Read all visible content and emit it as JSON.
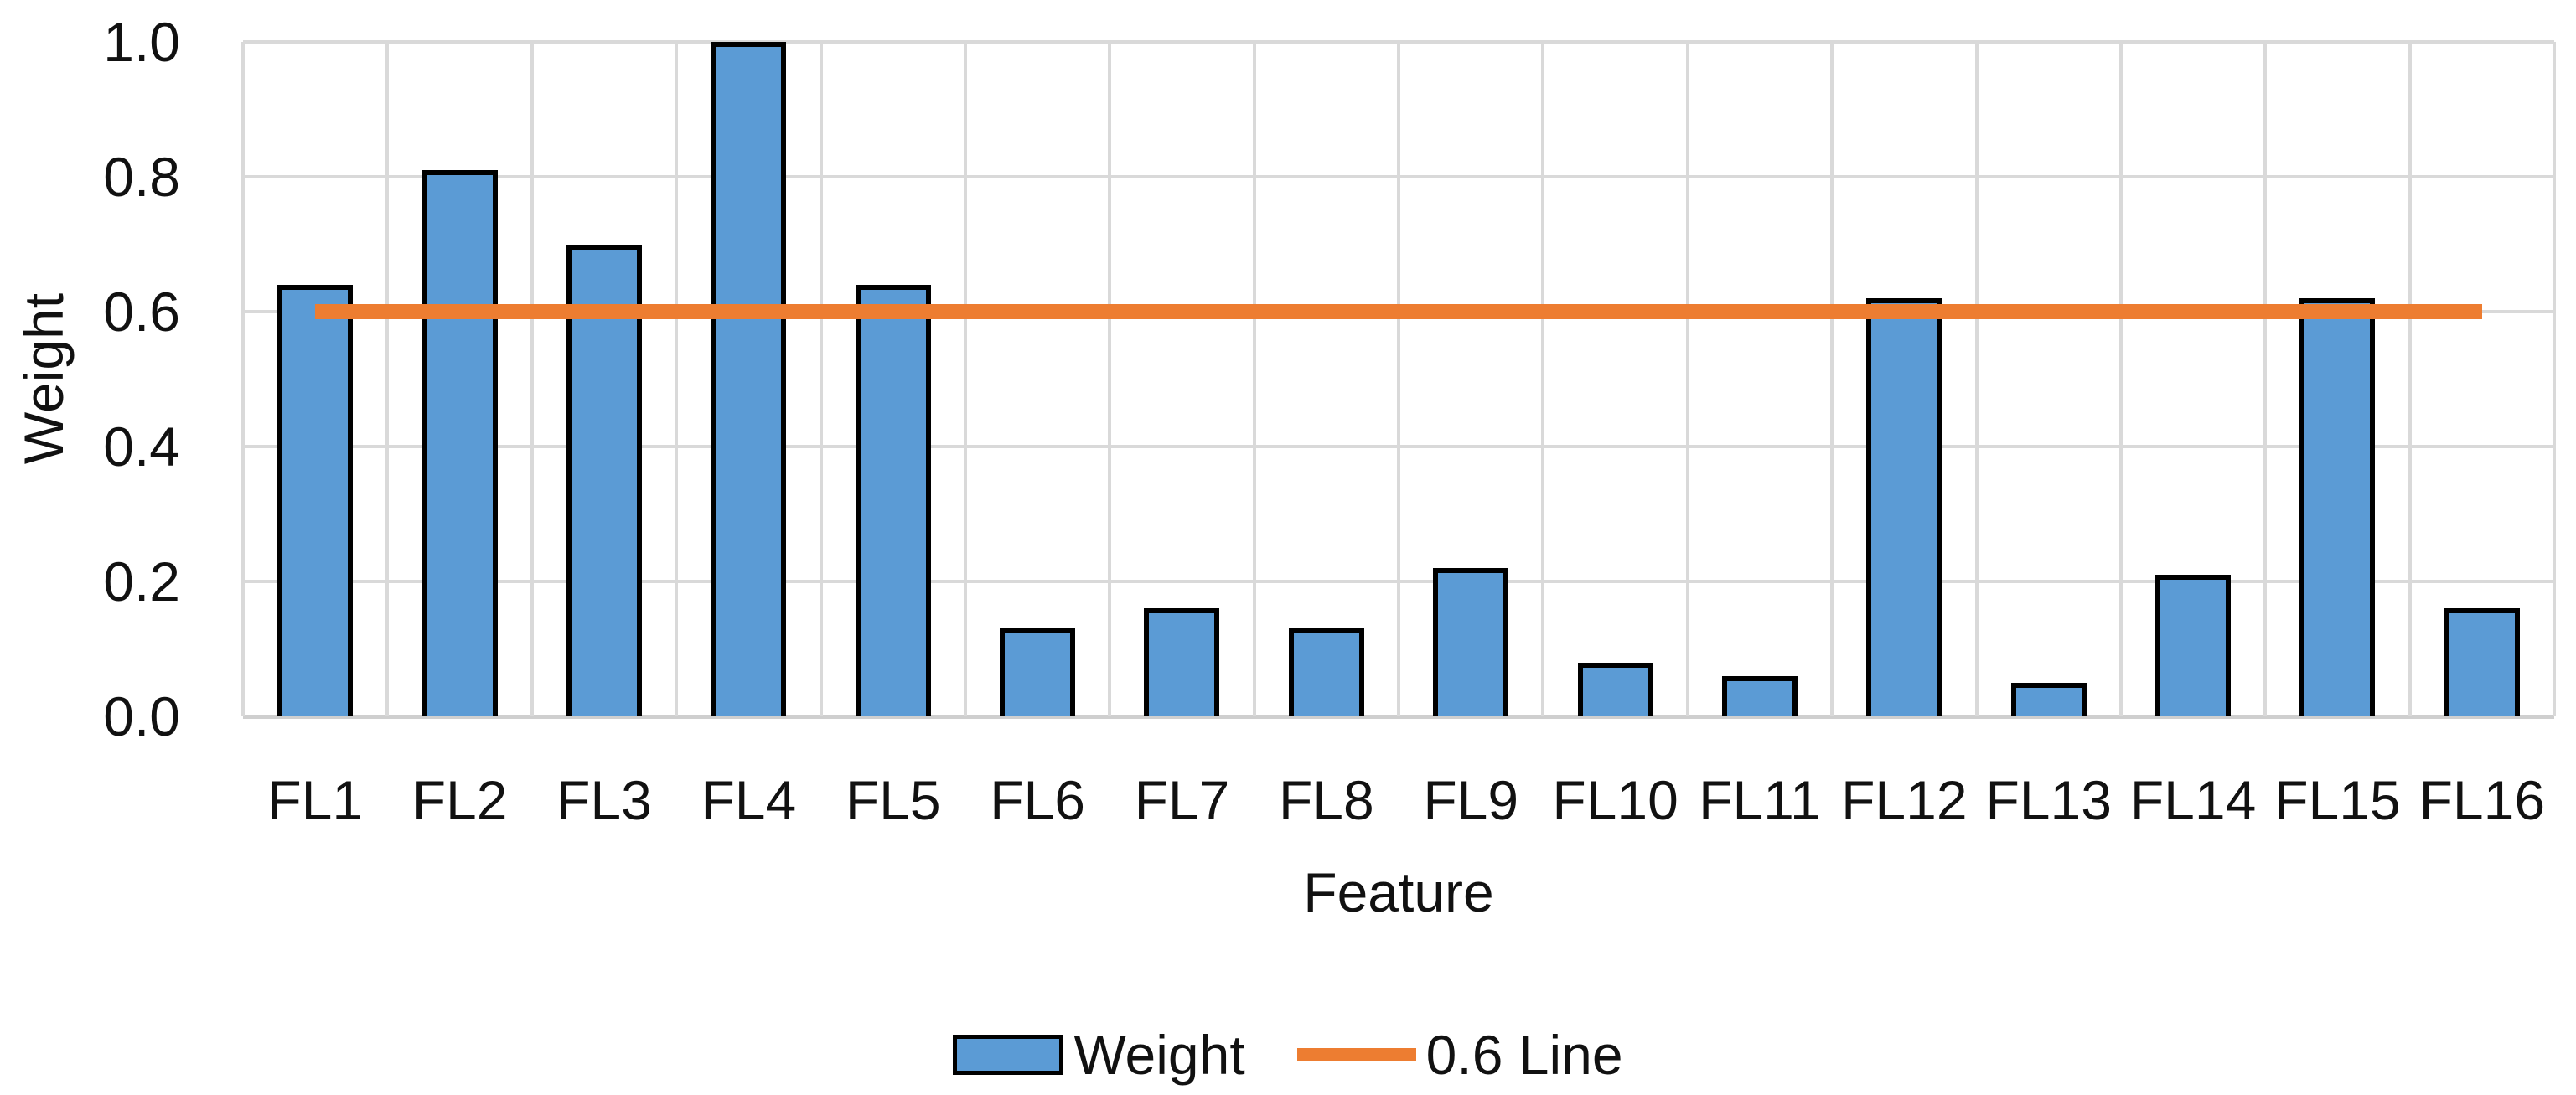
{
  "chart_data": {
    "type": "bar",
    "title": "",
    "xlabel": "Feature",
    "ylabel": "Weight",
    "categories": [
      "FL1",
      "FL2",
      "FL3",
      "FL4",
      "FL5",
      "FL6",
      "FL7",
      "FL8",
      "FL9",
      "FL10",
      "FL11",
      "FL12",
      "FL13",
      "FL14",
      "FL15",
      "FL16"
    ],
    "series": [
      {
        "name": "Weight",
        "type": "bar",
        "color": "#5b9bd5",
        "border_color": "#000000",
        "values": [
          0.64,
          0.81,
          0.7,
          1.0,
          0.64,
          0.13,
          0.16,
          0.13,
          0.22,
          0.08,
          0.06,
          0.62,
          0.05,
          0.21,
          0.62,
          0.16
        ]
      },
      {
        "name": "0.6 Line",
        "type": "line",
        "color": "#ed7d31",
        "value": 0.6
      }
    ],
    "ylim": [
      0,
      1
    ],
    "ytick_step": 0.2,
    "yticks": [
      "0.0",
      "0.2",
      "0.4",
      "0.6",
      "0.8",
      "1.0"
    ],
    "grid": true,
    "gridline_color": "#d9d9d9",
    "legend_position": "bottom"
  },
  "legend": {
    "items": [
      {
        "label": "Weight",
        "swatch": "bar",
        "color": "#5b9bd5"
      },
      {
        "label": "0.6 Line",
        "swatch": "line",
        "color": "#ed7d31"
      }
    ]
  }
}
